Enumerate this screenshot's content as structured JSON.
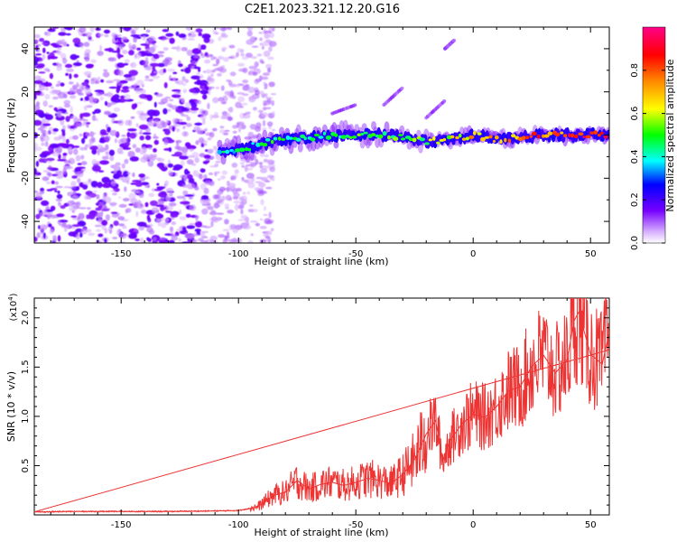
{
  "title": "C2E1.2023.321.12.20.G16",
  "colors": {
    "snr_line": "#ee3333",
    "frame": "#000000"
  },
  "chart_data": [
    {
      "type": "heatmap",
      "title": "C2E1.2023.321.12.20.G16",
      "xlabel": "Height of straight line (km)",
      "ylabel": "Frequency (Hz)",
      "xlim": [
        -187,
        58
      ],
      "ylim": [
        -50,
        50
      ],
      "xticks": [
        -150,
        -100,
        -50,
        0,
        50
      ],
      "xtick_labels": [
        "-150",
        "-100",
        "-50",
        "0",
        "50"
      ],
      "yticks": [
        -40,
        -20,
        0,
        20,
        40
      ],
      "ytick_labels": [
        "-40",
        "-20",
        "0",
        "20",
        "40"
      ],
      "description": "Scattered noise at x < -105 km; signal ridge near 0 Hz from -108 km to 58 km, amplitude increasing toward positive heights",
      "signal_ridge": {
        "x": [
          -108,
          -100,
          -90,
          -80,
          -70,
          -60,
          -50,
          -40,
          -30,
          -20,
          -10,
          0,
          10,
          20,
          30,
          40,
          50,
          58
        ],
        "frequency": [
          -8,
          -7,
          -4,
          -2,
          -1,
          0,
          0,
          0,
          -1,
          -3,
          -2,
          0,
          -2,
          -1,
          0,
          0,
          0,
          0
        ],
        "amplitude": [
          0.45,
          0.45,
          0.5,
          0.5,
          0.5,
          0.5,
          0.55,
          0.55,
          0.55,
          0.6,
          0.65,
          0.8,
          0.75,
          0.8,
          0.9,
          0.9,
          0.9,
          0.9
        ]
      },
      "colorbar": {
        "label": "Normalized spectral amplitude",
        "range": [
          0.0,
          1.0
        ],
        "ticks": [
          0.0,
          0.2,
          0.4,
          0.6,
          0.8
        ],
        "tick_labels": [
          "0.0",
          "0.2",
          "0.4",
          "0.6",
          "0.8"
        ]
      }
    },
    {
      "type": "line",
      "xlabel": "Height of straight line (km)",
      "ylabel": "SNR (10 * v/v)",
      "y_multiplier": "(x10",
      "y_multiplier_exp": "4",
      "y_multiplier_close": ")",
      "xlim": [
        -187,
        58
      ],
      "ylim": [
        0,
        22000
      ],
      "xticks": [
        -150,
        -100,
        -50,
        0,
        50
      ],
      "xtick_labels": [
        "-150",
        "-100",
        "-50",
        "0",
        "50"
      ],
      "yticks": [
        5000,
        10000,
        15000,
        20000
      ],
      "ytick_labels": [
        "0.5",
        "1.0",
        "1.5",
        "2.0"
      ],
      "series": [
        {
          "name": "SNR",
          "x": [
            -187,
            -170,
            -150,
            -130,
            -110,
            -100,
            -92,
            -85,
            -80,
            -75,
            -70,
            -65,
            -60,
            -55,
            -50,
            -45,
            -40,
            -35,
            -30,
            -25,
            -20,
            -16,
            -13,
            -10,
            -5,
            0,
            5,
            10,
            15,
            20,
            25,
            30,
            35,
            40,
            43,
            45,
            50,
            55,
            58
          ],
          "y": [
            300,
            350,
            350,
            350,
            400,
            450,
            800,
            2000,
            2300,
            3500,
            2600,
            3100,
            3300,
            3000,
            3300,
            3700,
            3500,
            3200,
            4100,
            5600,
            8200,
            9600,
            5500,
            7500,
            9200,
            10200,
            9900,
            11000,
            12600,
            13000,
            15100,
            16200,
            14400,
            15700,
            19700,
            20600,
            16300,
            15300,
            18600
          ]
        }
      ]
    }
  ]
}
